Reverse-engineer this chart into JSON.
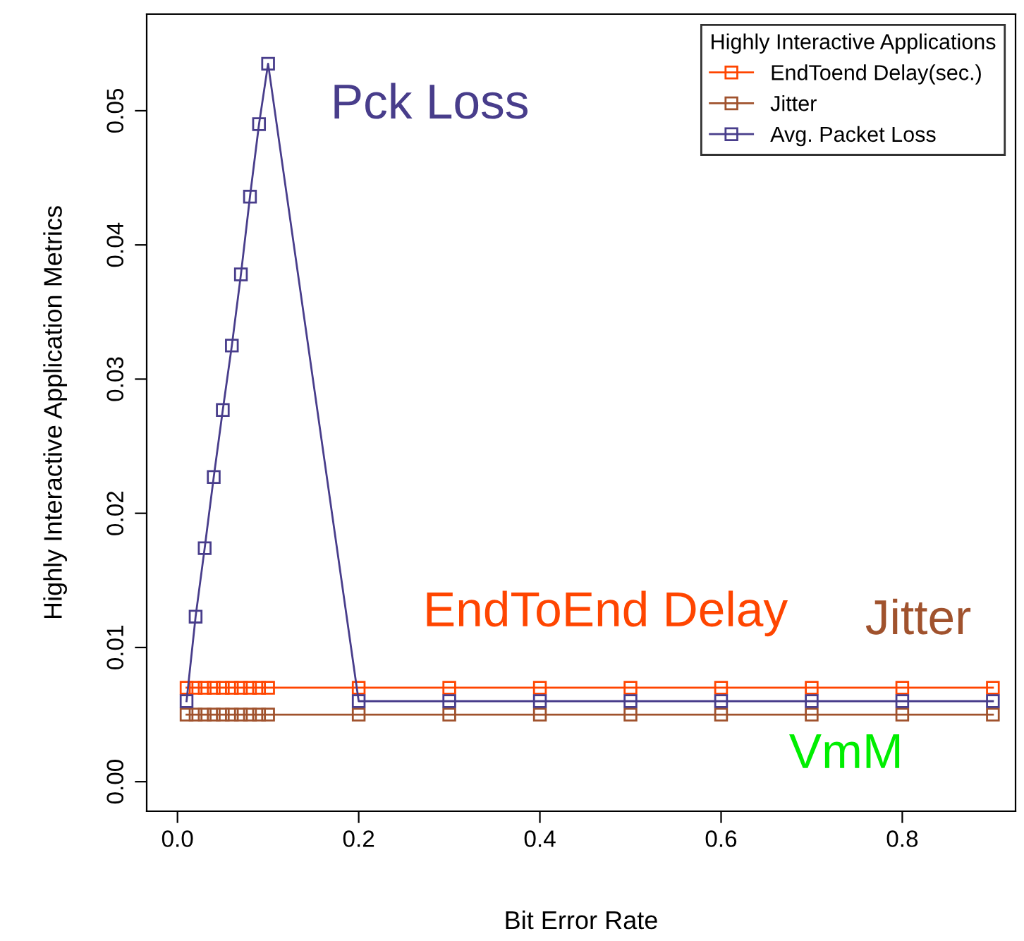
{
  "chart_data": {
    "type": "line",
    "xlabel": "Bit Error Rate",
    "ylabel": "Highly Interactive Application Metrics",
    "legend_title": "Highly Interactive Applications",
    "legend": "top right",
    "grid": false,
    "marker": "square",
    "line_style": "solid",
    "x": [
      0.01,
      0.02,
      0.03,
      0.04,
      0.05,
      0.06,
      0.07,
      0.08,
      0.09,
      0.1,
      0.2,
      0.3,
      0.4,
      0.5,
      0.6,
      0.7,
      0.8,
      0.9
    ],
    "series": [
      {
        "name": "EndToend Delay(sec.)",
        "color": "#ff4500",
        "values": [
          0.007,
          0.007,
          0.007,
          0.007,
          0.007,
          0.007,
          0.007,
          0.007,
          0.007,
          0.007,
          0.007,
          0.007,
          0.007,
          0.007,
          0.007,
          0.007,
          0.007,
          0.007
        ]
      },
      {
        "name": "Jitter",
        "color": "#a0522d",
        "values": [
          0.005,
          0.005,
          0.005,
          0.005,
          0.005,
          0.005,
          0.005,
          0.005,
          0.005,
          0.005,
          0.005,
          0.005,
          0.005,
          0.005,
          0.005,
          0.005,
          0.005,
          0.005
        ]
      },
      {
        "name": "Avg. Packet Loss",
        "color": "#483d8b",
        "values": [
          0.006,
          0.0123,
          0.0174,
          0.0227,
          0.0277,
          0.0325,
          0.0378,
          0.0436,
          0.049,
          0.0535,
          0.006,
          0.006,
          0.006,
          0.006,
          0.006,
          0.006,
          0.006,
          0.006
        ]
      }
    ],
    "xlim": [
      -0.034,
      0.925
    ],
    "ylim": [
      -0.0022,
      0.0572
    ],
    "xticks": [
      {
        "value": 0,
        "label": "0.0"
      },
      {
        "value": 0.2,
        "label": "0.2"
      },
      {
        "value": 0.4,
        "label": "0.4"
      },
      {
        "value": 0.6,
        "label": "0.6"
      },
      {
        "value": 0.8,
        "label": "0.8"
      }
    ],
    "yticks": [
      {
        "value": 0,
        "label": "0.00"
      },
      {
        "value": 0.01,
        "label": "0.01"
      },
      {
        "value": 0.02,
        "label": "0.02"
      },
      {
        "value": 0.03,
        "label": "0.03"
      },
      {
        "value": 0.04,
        "label": "0.04"
      },
      {
        "value": 0.05,
        "label": "0.05"
      }
    ],
    "annotations": [
      "Pck Loss",
      "EndToEnd Delay",
      "Jitter",
      "VmM"
    ]
  }
}
